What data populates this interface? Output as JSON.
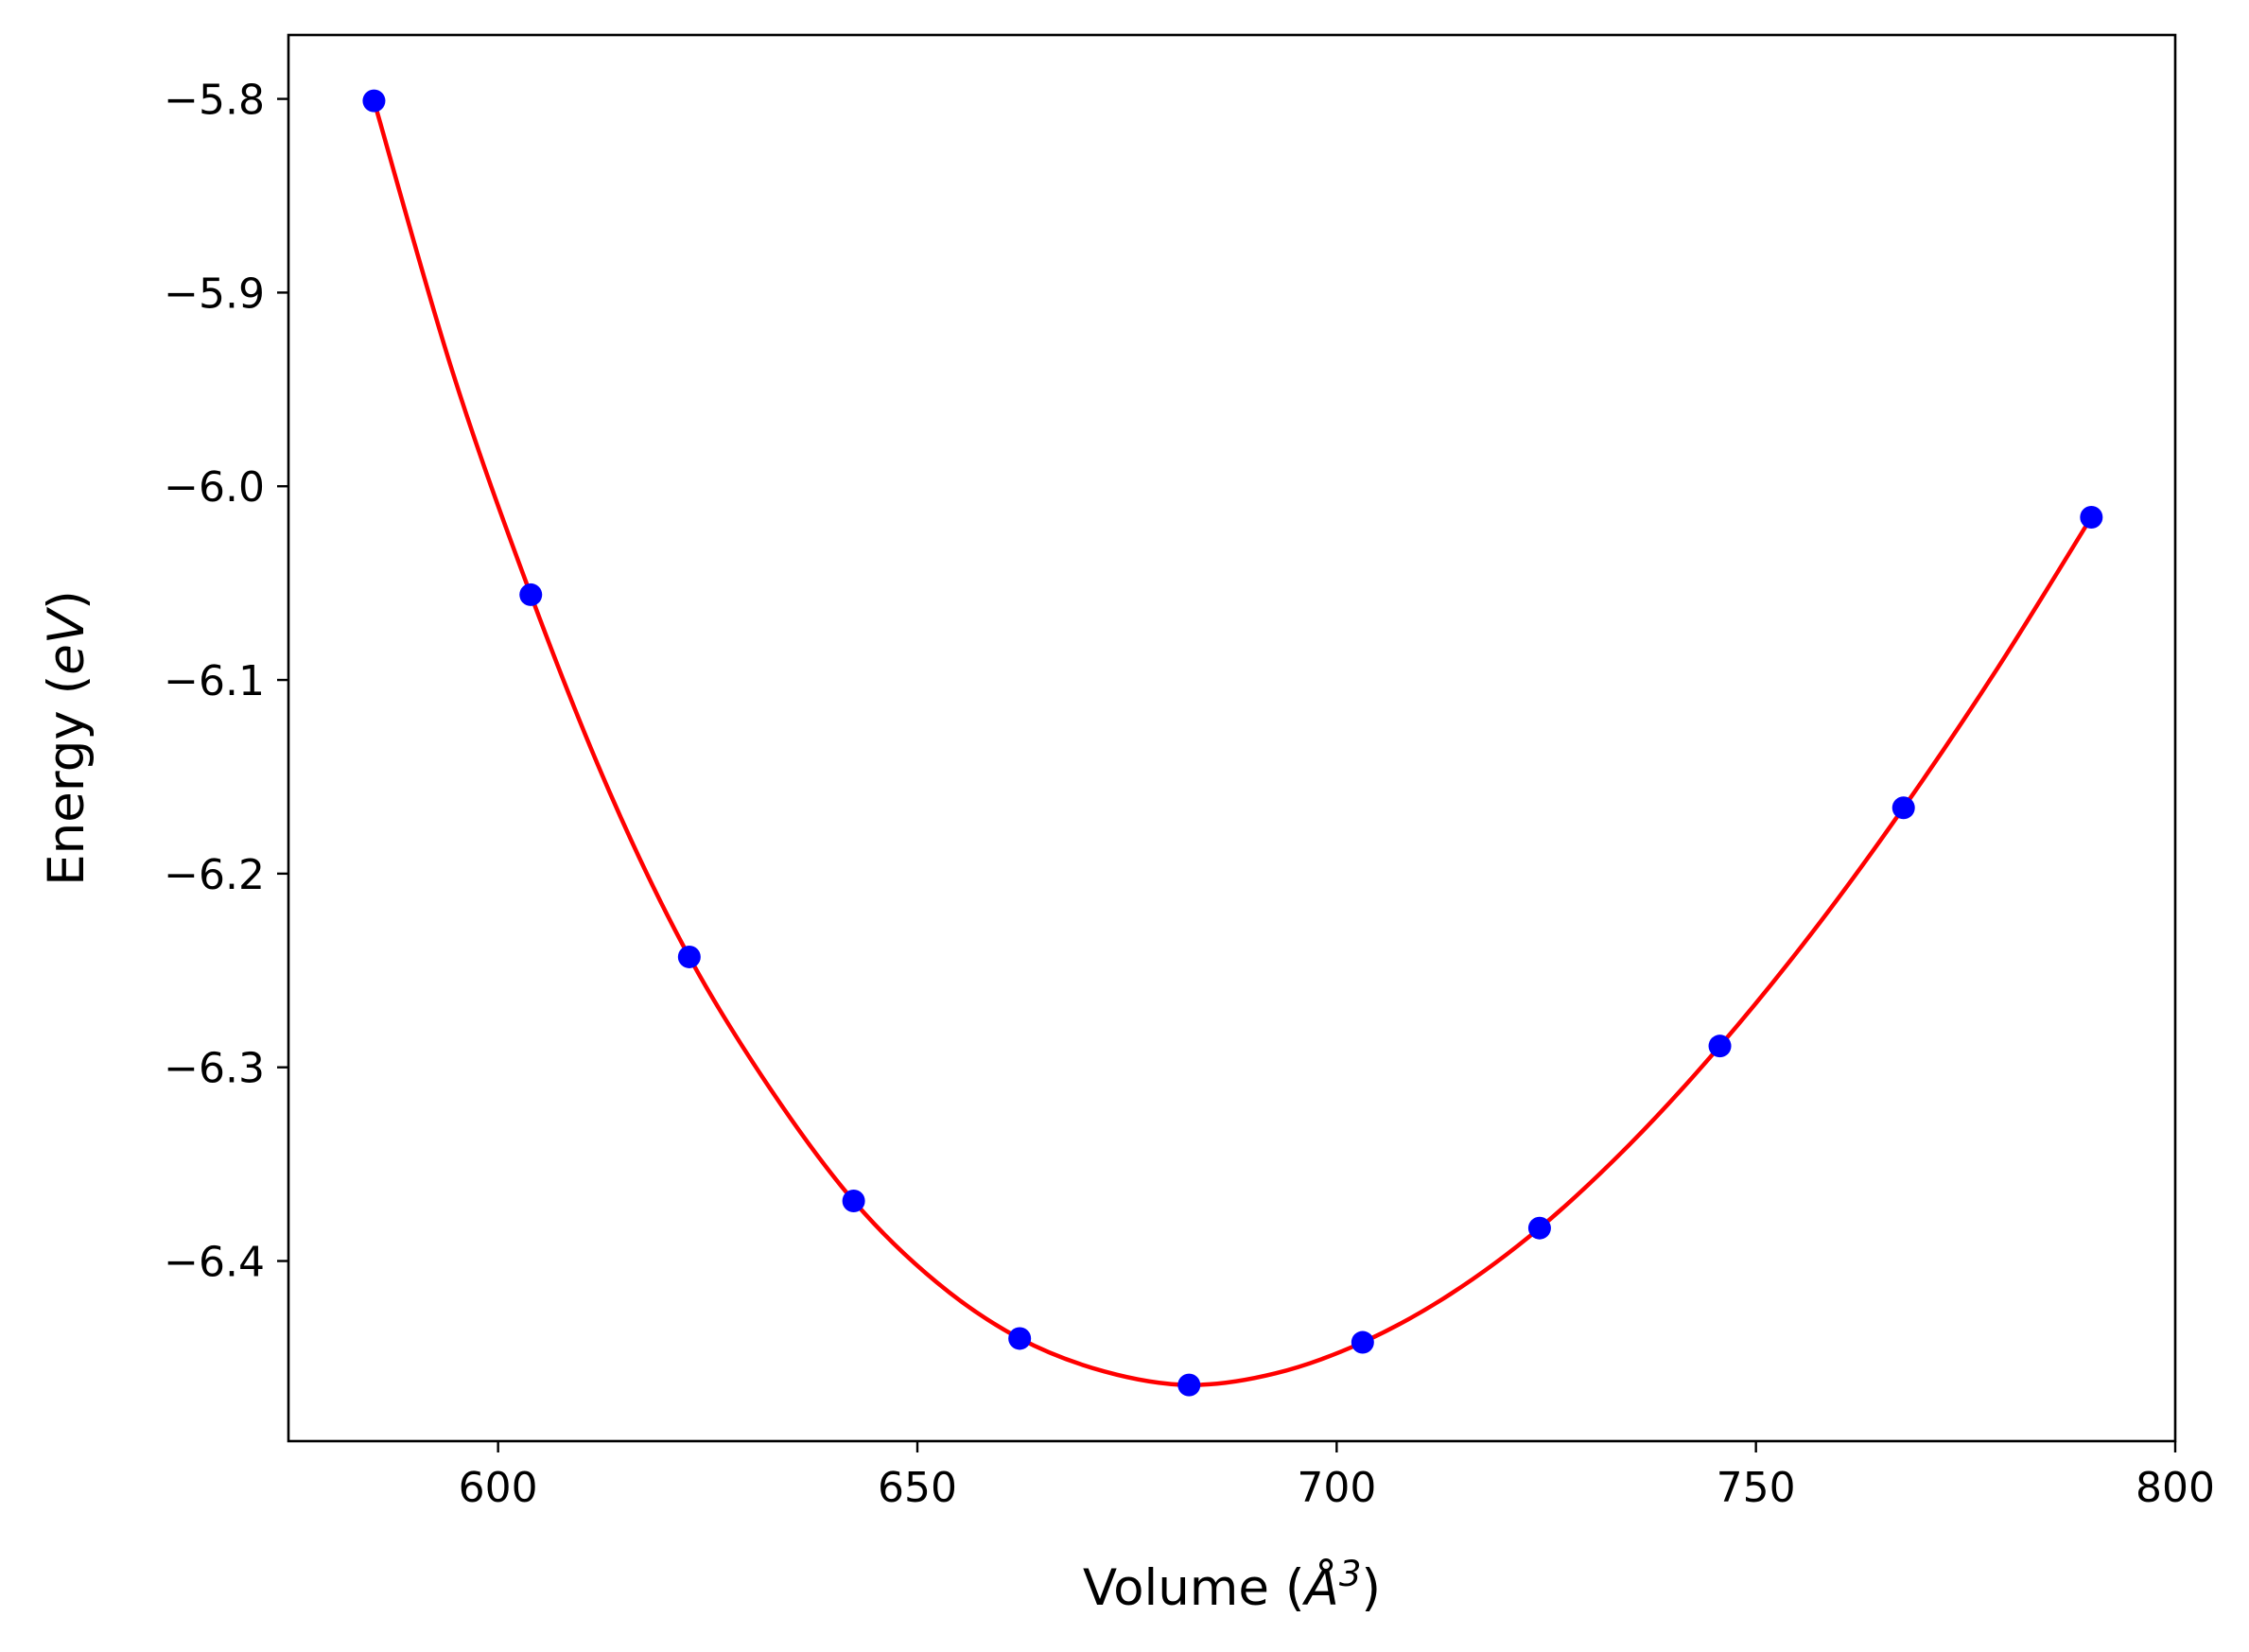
{
  "chart_data": {
    "type": "line",
    "xlabel": "Volume (Å³)",
    "xlabel_parts": {
      "before": "Volume (",
      "symbol": "Å",
      "sup": "3",
      "after": ")"
    },
    "ylabel": "Energy (eV)",
    "ylabel_parts": {
      "before": "Energy (",
      "italic": "eV",
      "after": ")"
    },
    "xlim": [
      575,
      800
    ],
    "ylim": [
      -6.493,
      -5.767
    ],
    "x_ticks": [
      600,
      650,
      700,
      750,
      800
    ],
    "x_tick_labels": [
      "600",
      "650",
      "700",
      "750",
      "800"
    ],
    "y_ticks": [
      -5.8,
      -5.9,
      -6.0,
      -6.1,
      -6.2,
      -6.3,
      -6.4
    ],
    "y_tick_labels": [
      "−5.8",
      "−5.9",
      "−6.0",
      "−6.1",
      "−6.2",
      "−6.3",
      "−6.4"
    ],
    "grid": false,
    "series": [
      {
        "kind": "scatter",
        "color": "#0000ff",
        "x": [
          585.2,
          603.9,
          622.8,
          642.4,
          662.2,
          682.4,
          703.1,
          724.2,
          745.7,
          767.6,
          790.0
        ],
        "y": [
          -5.801,
          -6.056,
          -6.243,
          -6.369,
          -6.44,
          -6.464,
          -6.442,
          -6.383,
          -6.289,
          -6.166,
          -6.016
        ]
      },
      {
        "kind": "line",
        "color": "#ff0000",
        "x": [
          585.2,
          594.5,
          603.9,
          613.3,
          622.8,
          632.6,
          642.4,
          652.3,
          662.2,
          672.3,
          682.4,
          692.7,
          703.1,
          713.6,
          724.2,
          734.9,
          745.7,
          756.6,
          767.6,
          778.8,
          790.0
        ],
        "y": [
          -5.801,
          -5.94,
          -6.056,
          -6.158,
          -6.243,
          -6.312,
          -6.369,
          -6.411,
          -6.44,
          -6.457,
          -6.464,
          -6.458,
          -6.442,
          -6.417,
          -6.383,
          -6.34,
          -6.289,
          -6.231,
          -6.166,
          -6.094,
          -6.016
        ]
      }
    ]
  }
}
